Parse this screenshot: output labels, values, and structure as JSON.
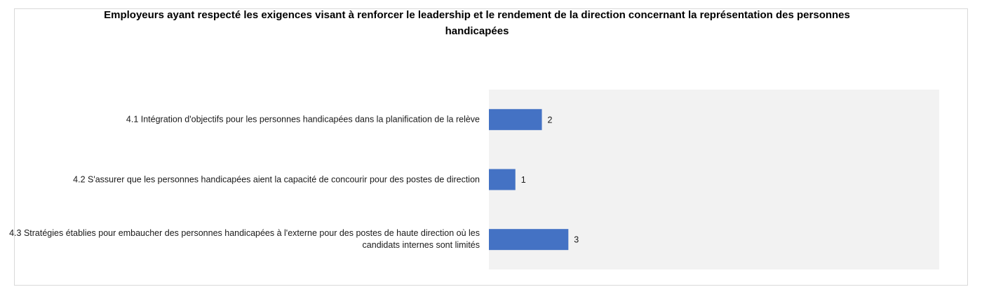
{
  "chart_data": {
    "type": "bar",
    "orientation": "horizontal",
    "title": "Employeurs ayant respecté les exigences visant à renforcer le leadership et le rendement de la direction concernant la représentation des personnes handicapées",
    "categories": [
      "4.1 Intégration d'objectifs pour les personnes handicapées dans la planification de la relève",
      "4.2  S'assurer que les personnes handicapées aient la capacité de concourir pour des postes de direction",
      "4.3 Stratégies établies pour embaucher des personnes handicapées à l'externe pour des postes de haute direction où les candidats internes sont limités"
    ],
    "values": [
      2,
      1,
      3
    ],
    "xlim": [
      0,
      17
    ],
    "grid": false,
    "legend": false,
    "colors": {
      "bar": "#4472c4",
      "plot_background": "#f2f2f2"
    }
  }
}
